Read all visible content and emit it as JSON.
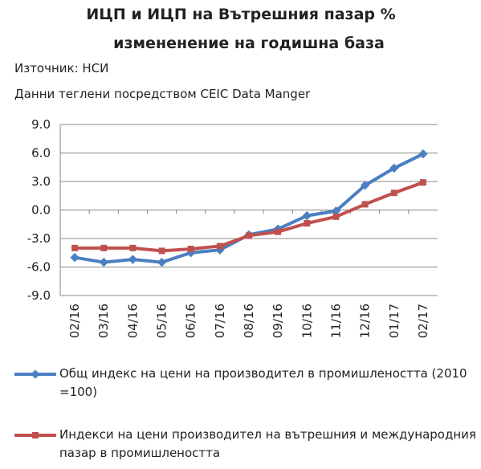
{
  "chart_data": {
    "type": "line",
    "title": "ИЦП и ИЦП на Вътрешния пазар %",
    "subtitle": "измененение на годишна база",
    "source": "Източник: НСИ",
    "note": "Данни теглени посредством CEIC Data Manger",
    "categories": [
      "02/16",
      "03/16",
      "04/16",
      "05/16",
      "06/16",
      "07/16",
      "08/16",
      "09/16",
      "10/16",
      "11/16",
      "12/16",
      "01/17",
      "02/17"
    ],
    "series": [
      {
        "name": "Общ индекс на цени на производител в промишлеността (2010 =100)",
        "color": "#4a7fc1",
        "values": [
          -5.0,
          -5.5,
          -5.2,
          -5.5,
          -4.5,
          -4.2,
          -2.6,
          -2.0,
          -0.6,
          -0.1,
          2.6,
          4.4,
          5.9
        ]
      },
      {
        "name": "Индекси на цени производител на вътрешния и международния пазар в промишлеността",
        "color": "#c0504d",
        "values": [
          -4.0,
          -4.0,
          -4.0,
          -4.3,
          -4.1,
          -3.8,
          -2.7,
          -2.3,
          -1.4,
          -0.7,
          0.6,
          1.8,
          2.9
        ]
      }
    ],
    "ylim": [
      -9,
      9
    ],
    "yticks": [
      {
        "value": -9,
        "label": "-9.0"
      },
      {
        "value": -6,
        "label": "-6.0"
      },
      {
        "value": -3,
        "label": "-3.0"
      },
      {
        "value": 0,
        "label": "0.0"
      },
      {
        "value": 3,
        "label": "3.0"
      },
      {
        "value": 6,
        "label": "6.0"
      },
      {
        "value": 9,
        "label": "9.0"
      }
    ],
    "grid": true,
    "legend": "bottom"
  }
}
